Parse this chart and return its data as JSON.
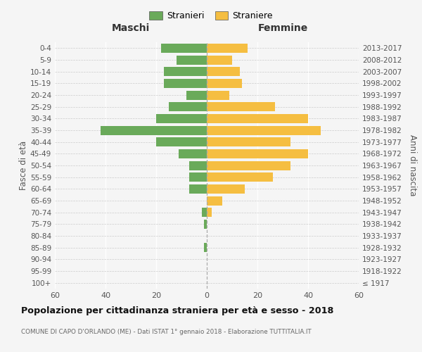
{
  "age_groups": [
    "100+",
    "95-99",
    "90-94",
    "85-89",
    "80-84",
    "75-79",
    "70-74",
    "65-69",
    "60-64",
    "55-59",
    "50-54",
    "45-49",
    "40-44",
    "35-39",
    "30-34",
    "25-29",
    "20-24",
    "15-19",
    "10-14",
    "5-9",
    "0-4"
  ],
  "birth_years": [
    "≤ 1917",
    "1918-1922",
    "1923-1927",
    "1928-1932",
    "1933-1937",
    "1938-1942",
    "1943-1947",
    "1948-1952",
    "1953-1957",
    "1958-1962",
    "1963-1967",
    "1968-1972",
    "1973-1977",
    "1978-1982",
    "1983-1987",
    "1988-1992",
    "1993-1997",
    "1998-2002",
    "2003-2007",
    "2008-2012",
    "2013-2017"
  ],
  "maschi": [
    0,
    0,
    0,
    1,
    0,
    1,
    2,
    0,
    7,
    7,
    7,
    11,
    20,
    42,
    20,
    15,
    8,
    17,
    17,
    12,
    18
  ],
  "femmine": [
    0,
    0,
    0,
    0,
    0,
    0,
    2,
    6,
    15,
    26,
    33,
    40,
    33,
    45,
    40,
    27,
    9,
    14,
    13,
    10,
    16
  ],
  "male_color": "#6aaa5a",
  "female_color": "#f5be41",
  "background_color": "#f5f5f5",
  "title": "Popolazione per cittadinanza straniera per età e sesso - 2018",
  "subtitle": "COMUNE DI CAPO D'ORLANDO (ME) - Dati ISTAT 1° gennaio 2018 - Elaborazione TUTTITALIA.IT",
  "header_left": "Maschi",
  "header_right": "Femmine",
  "ylabel_left": "Fasce di età",
  "ylabel_right": "Anni di nascita",
  "legend_male": "Stranieri",
  "legend_female": "Straniere",
  "xlim": 60
}
